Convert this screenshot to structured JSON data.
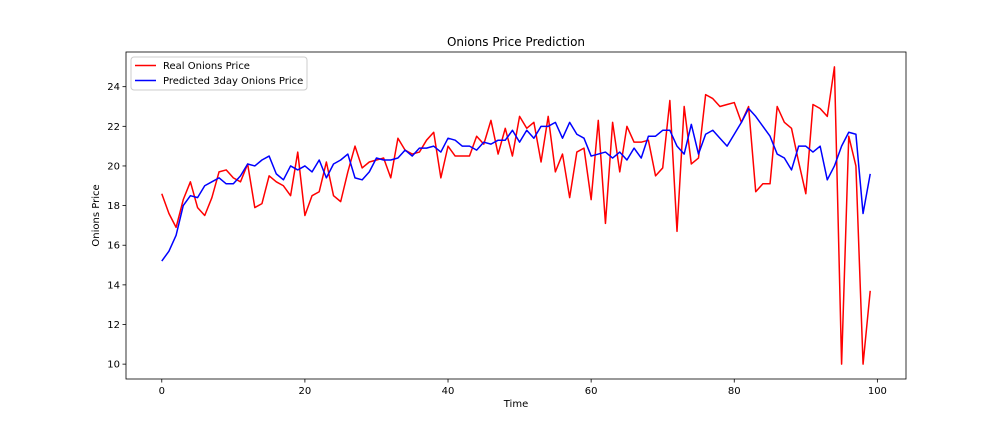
{
  "chart_data": {
    "type": "line",
    "title": "Onions Price Prediction",
    "xlabel": "Time",
    "ylabel": "Onions Price",
    "xlim": [
      -5,
      104
    ],
    "ylim": [
      9.25,
      25.75
    ],
    "xticks": [
      0,
      20,
      40,
      60,
      80,
      100
    ],
    "yticks": [
      10,
      12,
      14,
      16,
      18,
      20,
      22,
      24
    ],
    "grid": false,
    "legend_position": "upper-left",
    "series": [
      {
        "name": "Real Onions Price",
        "color": "#ff0000",
        "values": [
          18.6,
          17.6,
          16.9,
          18.3,
          19.2,
          17.9,
          17.5,
          18.4,
          19.7,
          19.8,
          19.4,
          19.2,
          20.1,
          17.9,
          18.1,
          19.5,
          19.2,
          19.0,
          18.5,
          20.7,
          17.5,
          18.5,
          18.7,
          20.2,
          18.5,
          18.2,
          19.7,
          21.0,
          19.9,
          20.2,
          20.3,
          20.4,
          19.4,
          21.4,
          20.8,
          20.6,
          20.7,
          21.3,
          21.7,
          19.4,
          21.0,
          20.5,
          20.5,
          20.5,
          21.5,
          21.1,
          22.3,
          20.6,
          21.9,
          20.5,
          22.5,
          21.9,
          22.2,
          20.2,
          22.5,
          19.7,
          20.6,
          18.4,
          20.7,
          20.9,
          18.3,
          22.3,
          17.1,
          22.2,
          19.7,
          22.0,
          21.2,
          21.2,
          21.3,
          19.5,
          19.9,
          23.3,
          16.7,
          23.0,
          20.1,
          20.4,
          23.6,
          23.4,
          23.0,
          23.1,
          23.2,
          22.2,
          23.0,
          18.7,
          19.1,
          19.1,
          23.0,
          22.2,
          21.9,
          20.2,
          18.6,
          23.1,
          22.9,
          22.5,
          25.0,
          10.0,
          21.5,
          20.0,
          10.0,
          13.7
        ]
      },
      {
        "name": "Predicted 3day Onions Price",
        "color": "#0000ff",
        "values": [
          15.2,
          15.7,
          16.5,
          18.0,
          18.5,
          18.4,
          19.0,
          19.2,
          19.4,
          19.1,
          19.1,
          19.5,
          20.1,
          20.0,
          20.3,
          20.5,
          19.6,
          19.3,
          20.0,
          19.8,
          20.0,
          19.7,
          20.3,
          19.4,
          20.1,
          20.3,
          20.6,
          19.4,
          19.3,
          19.7,
          20.4,
          20.3,
          20.3,
          20.4,
          20.8,
          20.5,
          20.9,
          20.9,
          21.0,
          20.7,
          21.4,
          21.3,
          21.0,
          21.0,
          20.8,
          21.2,
          21.1,
          21.3,
          21.3,
          21.8,
          21.2,
          21.8,
          21.4,
          22.0,
          22.0,
          22.2,
          21.4,
          22.2,
          21.6,
          21.4,
          20.5,
          20.6,
          20.7,
          20.4,
          20.7,
          20.3,
          20.9,
          20.4,
          21.5,
          21.5,
          21.8,
          21.8,
          21.0,
          20.6,
          22.1,
          20.6,
          21.6,
          21.8,
          21.4,
          21.0,
          21.6,
          22.2,
          22.9,
          22.5,
          22.0,
          21.5,
          20.6,
          20.4,
          19.8,
          21.0,
          21.0,
          20.7,
          21.0,
          19.3,
          20.0,
          21.0,
          21.7,
          21.6,
          17.6,
          19.6
        ]
      }
    ]
  }
}
